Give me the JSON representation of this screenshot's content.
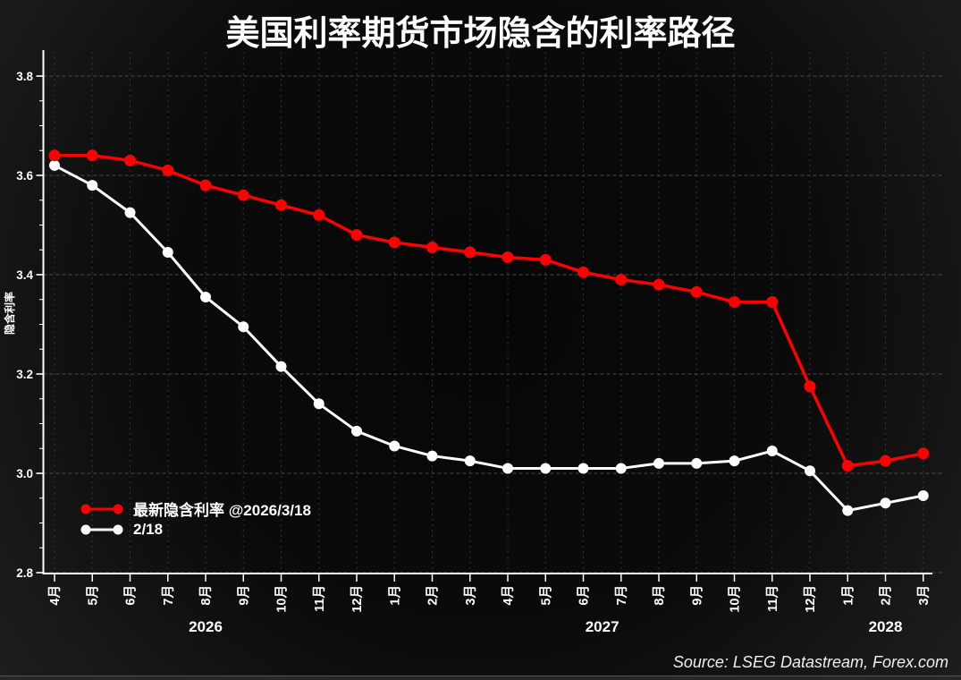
{
  "title": "美国利率期货市场隐含的利率路径",
  "source": "Source: LSEG Datastream, Forex.com",
  "legend": [
    {
      "label": "最新隐含利率 @2026/3/18",
      "color": "#ff0000"
    },
    {
      "label": "2/18",
      "color": "#ffffff"
    }
  ],
  "chart_data": {
    "type": "line",
    "title": "美国利率期货市场隐含的利率路径",
    "xlabel": "",
    "ylabel": "隐含利率",
    "ylim": [
      2.8,
      3.8
    ],
    "y_ticks": [
      "2.8",
      "3.0",
      "3.2",
      "3.4",
      "3.6",
      "3.8"
    ],
    "grid": true,
    "legend_position": "lower-left",
    "x_tick_labels": [
      "4月",
      "5月",
      "6月",
      "7月",
      "8月",
      "9月",
      "10月",
      "11月",
      "12月",
      "1月",
      "2月",
      "3月",
      "4月",
      "5月",
      "6月",
      "7月",
      "8月",
      "9月",
      "10月",
      "11月",
      "12月",
      "1月",
      "2月",
      "3月"
    ],
    "year_labels": [
      {
        "label": "2026",
        "from": 0,
        "to": 8
      },
      {
        "label": "2027",
        "from": 9,
        "to": 20
      },
      {
        "label": "2028",
        "from": 21,
        "to": 23
      }
    ],
    "series": [
      {
        "name": "最新隐含利率 @2026/3/18",
        "color": "#ff0000",
        "values": [
          3.64,
          3.64,
          3.63,
          3.61,
          3.58,
          3.56,
          3.54,
          3.52,
          3.48,
          3.465,
          3.455,
          3.445,
          3.435,
          3.43,
          3.405,
          3.39,
          3.38,
          3.365,
          3.345,
          3.345,
          3.175,
          3.015,
          3.025,
          3.04
        ]
      },
      {
        "name": "2/18",
        "color": "#ffffff",
        "values": [
          3.62,
          3.58,
          3.525,
          3.445,
          3.355,
          3.295,
          3.215,
          3.14,
          3.085,
          3.055,
          3.035,
          3.025,
          3.01,
          3.01,
          3.01,
          3.01,
          3.02,
          3.02,
          3.025,
          3.045,
          3.005,
          2.925,
          2.94,
          2.955
        ]
      }
    ]
  }
}
